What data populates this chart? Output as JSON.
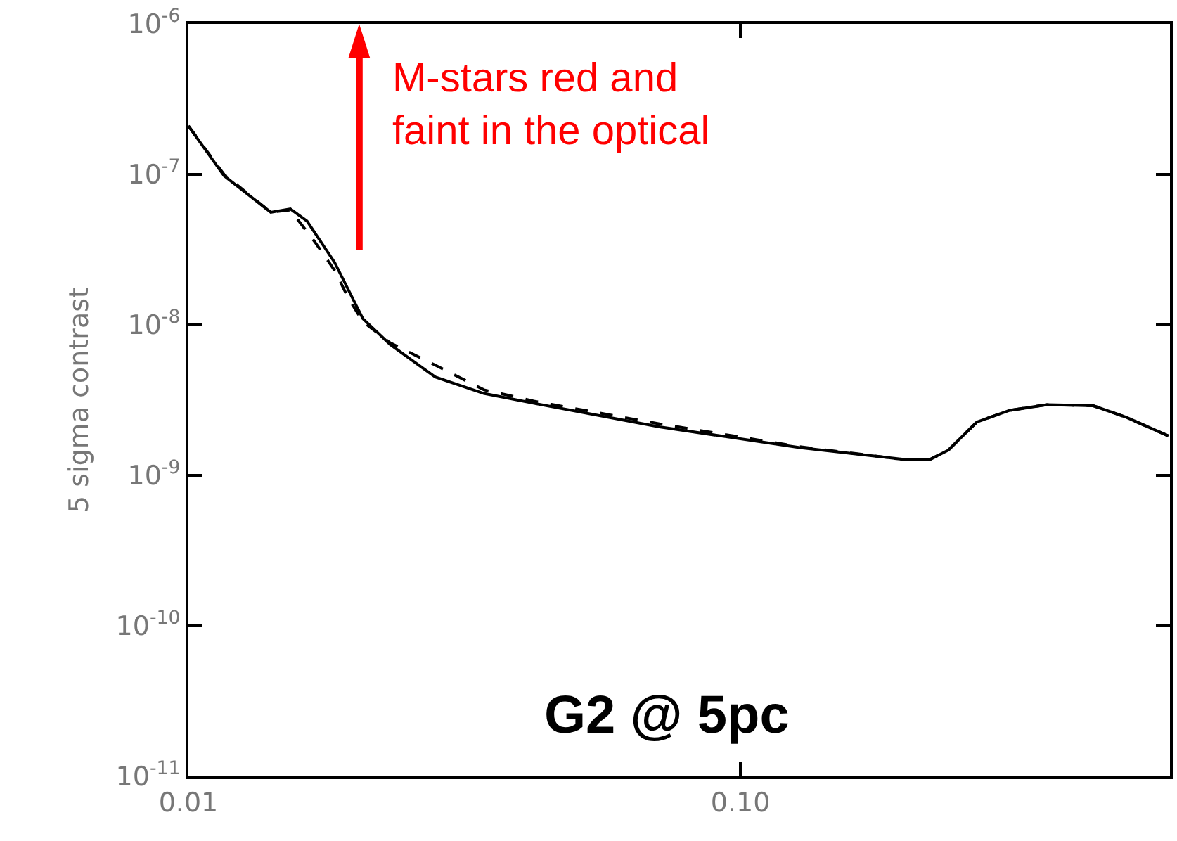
{
  "chart_data": {
    "type": "line",
    "ylabel": "5 sigma contrast",
    "log": "xy",
    "marker": "none",
    "xlim": [
      0.01,
      0.6
    ],
    "xticks": [
      {
        "value": 0.01,
        "label": "0.01"
      },
      {
        "value": 0.1,
        "label": "0.10"
      }
    ],
    "ylim": [
      1e-11,
      1e-06
    ],
    "yticks": [
      {
        "value": 1e-11,
        "label": "10$^{-11}$"
      },
      {
        "value": 1e-10,
        "label": "10$^{-10}$"
      },
      {
        "value": 1e-09,
        "label": "10$^{-9}$"
      },
      {
        "value": 1e-08,
        "label": "10$^{-8}$"
      },
      {
        "value": 1e-07,
        "label": "10$^{-7}$"
      },
      {
        "value": 1e-06,
        "label": "10$^{-6}$"
      }
    ],
    "series": [
      {
        "color": "#000000",
        "line_style": "solid",
        "x": [
          0.01,
          0.0116,
          0.0141,
          0.0153,
          0.0164,
          0.0184,
          0.0195,
          0.0207,
          0.0232,
          0.028,
          0.0343,
          0.0425,
          0.0713,
          0.128,
          0.196,
          0.22,
          0.238,
          0.268,
          0.307,
          0.359,
          0.436,
          0.5,
          0.596
        ],
        "values": [
          2.1e-07,
          9.8e-08,
          5.6e-08,
          5.9e-08,
          4.9e-08,
          2.6e-08,
          1.7e-08,
          1.1e-08,
          7.4e-09,
          4.5e-09,
          3.5e-09,
          3e-09,
          2.1e-09,
          1.53e-09,
          1.28e-09,
          1.27e-09,
          1.47e-09,
          2.26e-09,
          2.7e-09,
          2.95e-09,
          2.9e-09,
          2.43e-09,
          1.83e-09
        ]
      },
      {
        "color": "#000000",
        "line_style": "dashed",
        "x": [
          0.01,
          0.0116,
          0.0141,
          0.0153,
          0.017,
          0.0184,
          0.0195,
          0.0207,
          0.0232,
          0.028,
          0.0343,
          0.0425,
          0.0713,
          0.128,
          0.196,
          0.22,
          0.238,
          0.268,
          0.307,
          0.359,
          0.436,
          0.5,
          0.596
        ],
        "values": [
          2.1e-07,
          1e-07,
          5.6e-08,
          5.8e-08,
          3.5e-08,
          2.3e-08,
          1.5e-08,
          1.05e-08,
          7.6e-09,
          5.4e-09,
          3.7e-09,
          3.1e-09,
          2.2e-09,
          1.55e-09,
          1.28e-09,
          1.27e-09,
          1.47e-09,
          2.26e-09,
          2.7e-09,
          2.95e-09,
          2.9e-09,
          2.43e-09,
          1.83e-09
        ]
      }
    ],
    "annotations": [
      "M-stars red and faint in the optical",
      "G2 @ 5pc"
    ]
  }
}
